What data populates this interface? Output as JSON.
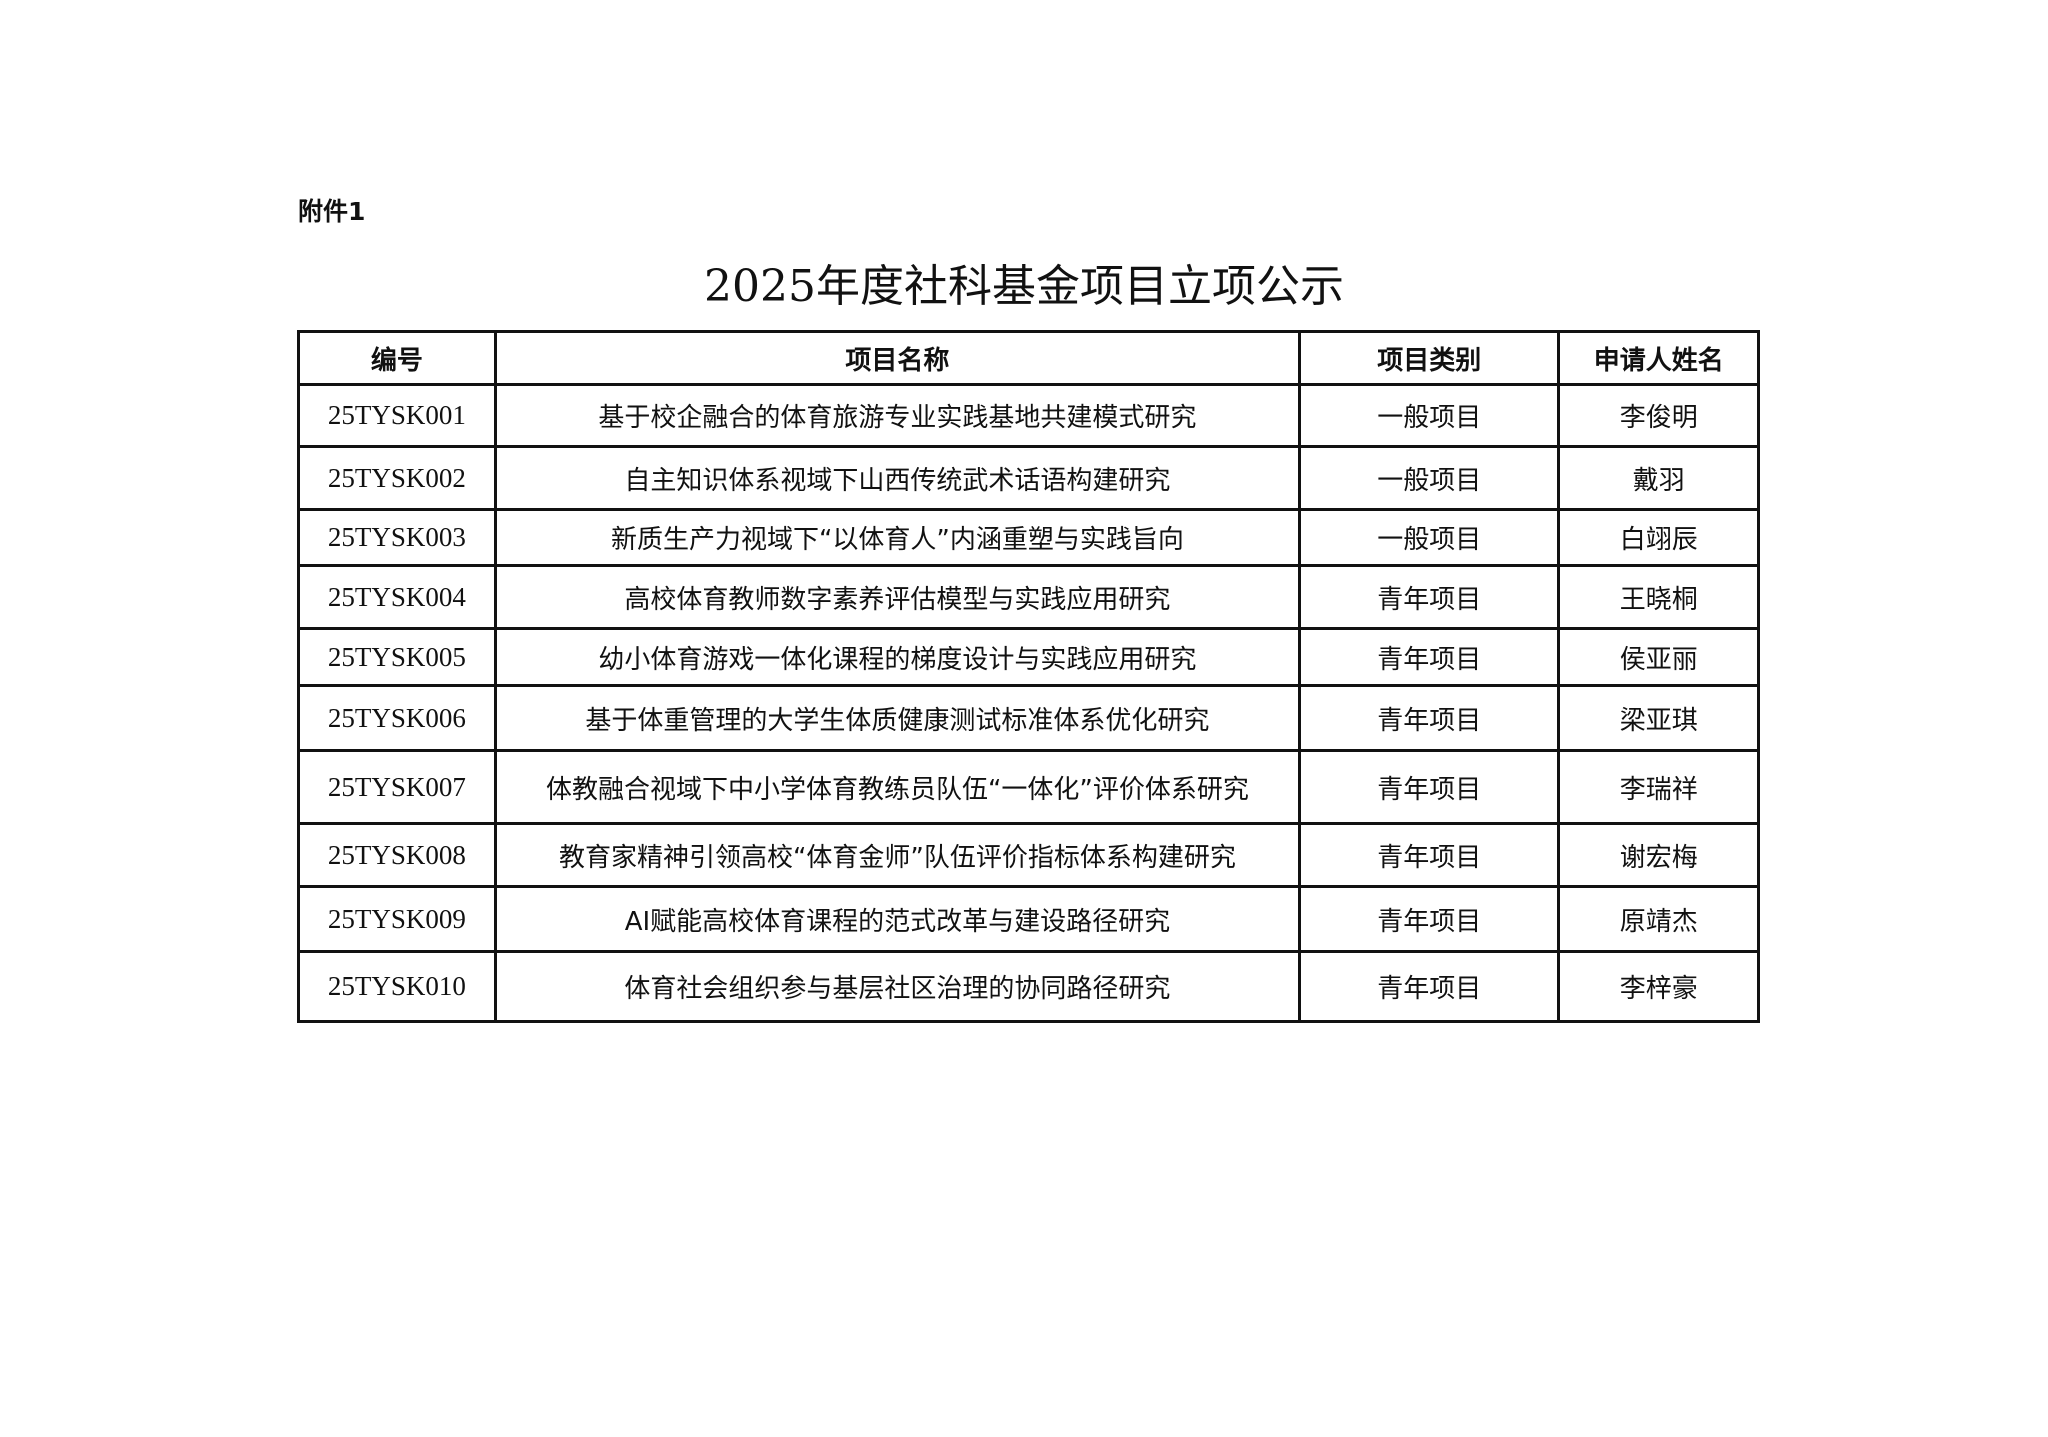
{
  "attachment_label": "附件1",
  "title": "2025年度社科基金项目立项公示",
  "table": {
    "headers": [
      "编号",
      "项目名称",
      "项目类别",
      "申请人姓名"
    ],
    "rows": [
      [
        "25TYSK001",
        "基于校企融合的体育旅游专业实践基地共建模式研究",
        "一般项目",
        "李俊明"
      ],
      [
        "25TYSK002",
        "自主知识体系视域下山西传统武术话语构建研究",
        "一般项目",
        "戴羽"
      ],
      [
        "25TYSK003",
        "新质生产力视域下“以体育人”内涵重塑与实践旨向",
        "一般项目",
        "白翊辰"
      ],
      [
        "25TYSK004",
        "高校体育教师数字素养评估模型与实践应用研究",
        "青年项目",
        "王晓桐"
      ],
      [
        "25TYSK005",
        "幼小体育游戏一体化课程的梯度设计与实践应用研究",
        "青年项目",
        "侯亚丽"
      ],
      [
        "25TYSK006",
        "基于体重管理的大学生体质健康测试标准体系优化研究",
        "青年项目",
        "梁亚琪"
      ],
      [
        "25TYSK007",
        "体教融合视域下中小学体育教练员队伍“一体化”评价体系研究",
        "青年项目",
        "李瑞祥"
      ],
      [
        "25TYSK008",
        "教育家精神引领高校“体育金师”队伍评价指标体系构建研究",
        "青年项目",
        "谢宏梅"
      ],
      [
        "25TYSK009",
        "AI赋能高校体育课程的范式改革与建设路径研究",
        "青年项目",
        "原靖杰"
      ],
      [
        "25TYSK010",
        "体育社会组织参与基层社区治理的协同路径研究",
        "青年项目",
        "李梓豪"
      ]
    ]
  }
}
